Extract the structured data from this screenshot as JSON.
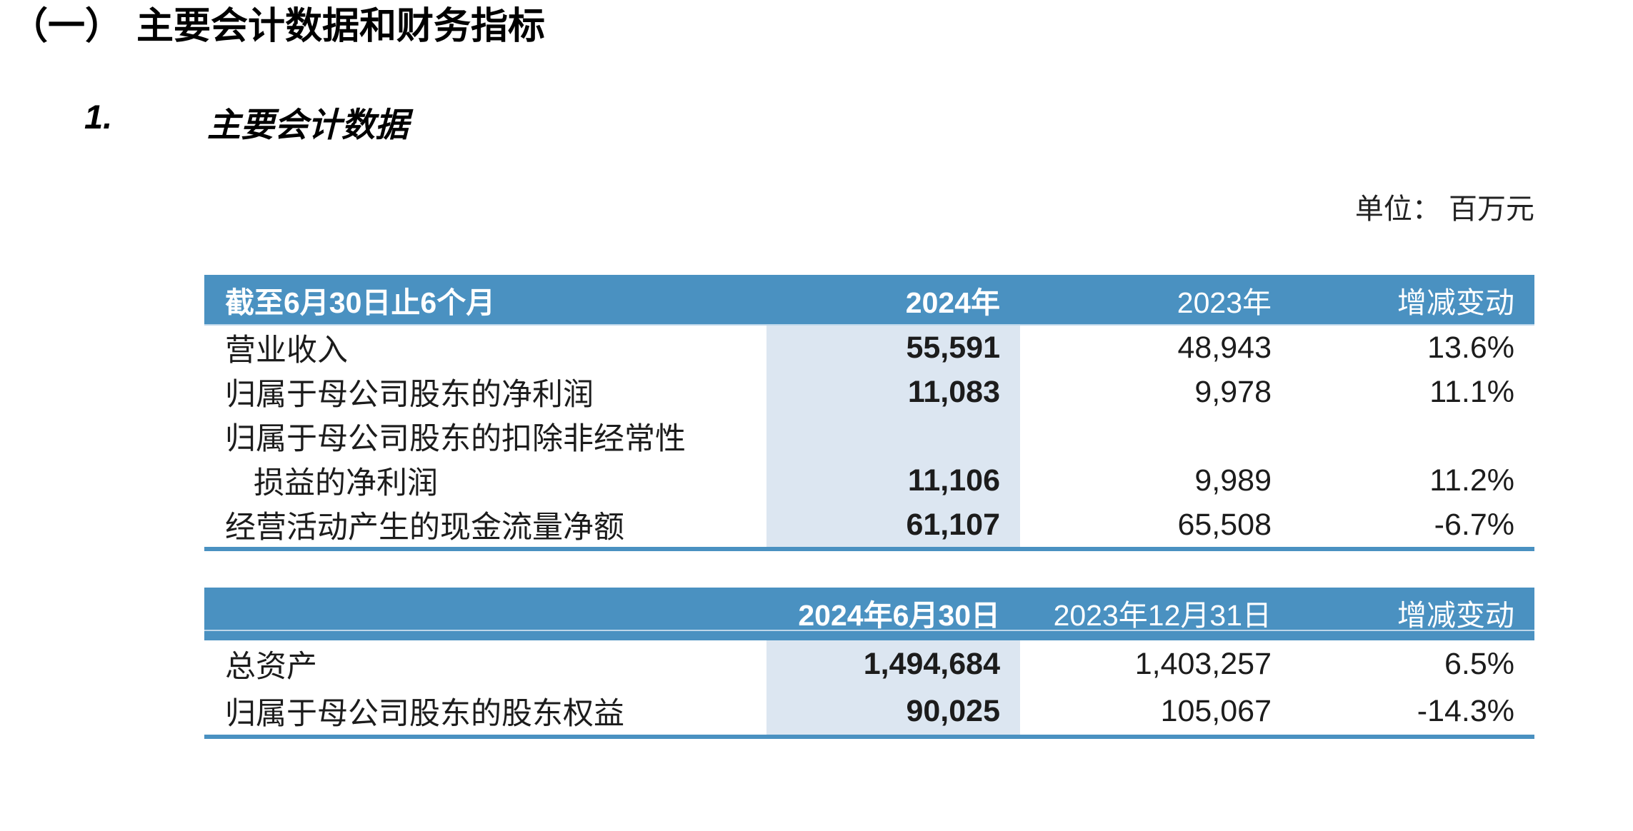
{
  "page": {
    "section_number": "（一）",
    "section_title": "主要会计数据和财务指标",
    "subsection_number": "1.",
    "subsection_title": "主要会计数据",
    "unit_label": "单位： 百万元"
  },
  "colors": {
    "header_blue": "#4A91C1",
    "highlight_column_blue": "#DCE6F1",
    "header_divider_light_blue": "#BED7EA",
    "body_text": "#1C1C1C"
  },
  "table1": {
    "header": {
      "col1": "截至6月30日止6个月",
      "col2": "2024年",
      "col3": "2023年",
      "col4": "增减变动"
    },
    "rows": [
      {
        "label": "营业收入",
        "v2024": "55,591",
        "v2023": "48,943",
        "change": "13.6%"
      },
      {
        "label": "归属于母公司股东的净利润",
        "v2024": "11,083",
        "v2023": "9,978",
        "change": "11.1%"
      },
      {
        "label_line1": "归属于母公司股东的扣除非经常性",
        "label_line2": "损益的净利润",
        "v2024": "11,106",
        "v2023": "9,989",
        "change": "11.2%"
      },
      {
        "label": "经营活动产生的现金流量净额",
        "v2024": "61,107",
        "v2023": "65,508",
        "change": "-6.7%"
      }
    ]
  },
  "table2": {
    "header": {
      "col1": "",
      "col2": "2024年6月30日",
      "col3": "2023年12月31日",
      "col4": "增减变动"
    },
    "rows": [
      {
        "label": "总资产",
        "v1": "1,494,684",
        "v2": "1,403,257",
        "change": "6.5%"
      },
      {
        "label": "归属于母公司股东的股东权益",
        "v1": "90,025",
        "v2": "105,067",
        "change": "-14.3%"
      }
    ]
  }
}
